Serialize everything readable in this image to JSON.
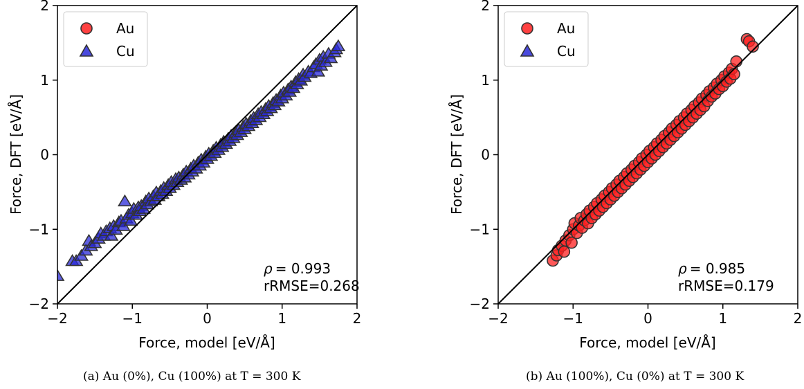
{
  "chart_data": [
    {
      "type": "scatter",
      "title": "",
      "xlabel": "Force, model [eV/Å]",
      "ylabel": "Force, DFT [eV/Å]",
      "xlim": [
        -2,
        2
      ],
      "ylim": [
        -2,
        2
      ],
      "xticks": [
        "−2",
        "−1",
        "0",
        "1",
        "2"
      ],
      "yticks": [
        "−2",
        "−1",
        "0",
        "1",
        "2"
      ],
      "grid": false,
      "legend_position": "top-left",
      "legend": [
        {
          "label": "Au",
          "marker": "circle",
          "color": "#ff2020"
        },
        {
          "label": "Cu",
          "marker": "triangle",
          "color": "#2a2ad8"
        }
      ],
      "reference_line": "y = x",
      "annotation": {
        "rho_symbol": "ρ",
        "rho": "= 0.993",
        "rrmse": "rRMSE=0.268"
      },
      "caption": "(a) Au (0%), Cu (100%) at T = 300 K",
      "series": [
        {
          "name": "Cu",
          "marker": "triangle",
          "color": "#2a2ad8",
          "points": [
            [
              -2.0,
              -1.62
            ],
            [
              -1.8,
              -1.42
            ],
            [
              -1.75,
              -1.42
            ],
            [
              -1.68,
              -1.35
            ],
            [
              -1.62,
              -1.28
            ],
            [
              -1.58,
              -1.15
            ],
            [
              -1.55,
              -1.22
            ],
            [
              -1.5,
              -1.18
            ],
            [
              -1.45,
              -1.12
            ],
            [
              -1.42,
              -1.05
            ],
            [
              -1.38,
              -1.08
            ],
            [
              -1.35,
              -1.02
            ],
            [
              -1.3,
              -0.98
            ],
            [
              -1.28,
              -1.08
            ],
            [
              -1.25,
              -0.95
            ],
            [
              -1.22,
              -1.0
            ],
            [
              -1.18,
              -0.9
            ],
            [
              -1.15,
              -0.88
            ],
            [
              -1.12,
              -0.95
            ],
            [
              -1.1,
              -0.62
            ],
            [
              -1.08,
              -0.85
            ],
            [
              -1.05,
              -0.8
            ],
            [
              -1.02,
              -0.88
            ],
            [
              -1.0,
              -0.78
            ],
            [
              -0.98,
              -0.72
            ],
            [
              -0.95,
              -0.8
            ],
            [
              -0.92,
              -0.7
            ],
            [
              -0.9,
              -0.75
            ],
            [
              -0.88,
              -0.68
            ],
            [
              -0.85,
              -0.72
            ],
            [
              -0.82,
              -0.62
            ],
            [
              -0.8,
              -0.66
            ],
            [
              -0.78,
              -0.58
            ],
            [
              -0.75,
              -0.62
            ],
            [
              -0.72,
              -0.55
            ],
            [
              -0.7,
              -0.6
            ],
            [
              -0.68,
              -0.5
            ],
            [
              -0.65,
              -0.55
            ],
            [
              -0.62,
              -0.48
            ],
            [
              -0.6,
              -0.52
            ],
            [
              -0.58,
              -0.44
            ],
            [
              -0.55,
              -0.48
            ],
            [
              -0.52,
              -0.4
            ],
            [
              -0.5,
              -0.44
            ],
            [
              -0.48,
              -0.36
            ],
            [
              -0.45,
              -0.4
            ],
            [
              -0.42,
              -0.32
            ],
            [
              -0.4,
              -0.36
            ],
            [
              -0.38,
              -0.3
            ],
            [
              -0.35,
              -0.33
            ],
            [
              -0.32,
              -0.26
            ],
            [
              -0.3,
              -0.3
            ],
            [
              -0.28,
              -0.22
            ],
            [
              -0.25,
              -0.26
            ],
            [
              -0.22,
              -0.18
            ],
            [
              -0.2,
              -0.22
            ],
            [
              -0.18,
              -0.14
            ],
            [
              -0.15,
              -0.18
            ],
            [
              -0.12,
              -0.1
            ],
            [
              -0.1,
              -0.14
            ],
            [
              -0.08,
              -0.06
            ],
            [
              -0.05,
              -0.1
            ],
            [
              -0.02,
              -0.02
            ],
            [
              0.0,
              -0.05
            ],
            [
              0.02,
              0.02
            ],
            [
              0.05,
              -0.01
            ],
            [
              0.08,
              0.06
            ],
            [
              0.1,
              0.03
            ],
            [
              0.12,
              0.1
            ],
            [
              0.15,
              0.07
            ],
            [
              0.18,
              0.14
            ],
            [
              0.2,
              0.11
            ],
            [
              0.22,
              0.18
            ],
            [
              0.25,
              0.15
            ],
            [
              0.28,
              0.22
            ],
            [
              0.3,
              0.19
            ],
            [
              0.32,
              0.26
            ],
            [
              0.35,
              0.23
            ],
            [
              0.38,
              0.3
            ],
            [
              0.4,
              0.27
            ],
            [
              0.42,
              0.34
            ],
            [
              0.45,
              0.31
            ],
            [
              0.48,
              0.38
            ],
            [
              0.5,
              0.35
            ],
            [
              0.52,
              0.42
            ],
            [
              0.55,
              0.39
            ],
            [
              0.58,
              0.46
            ],
            [
              0.6,
              0.43
            ],
            [
              0.62,
              0.5
            ],
            [
              0.65,
              0.47
            ],
            [
              0.68,
              0.55
            ],
            [
              0.7,
              0.51
            ],
            [
              0.72,
              0.58
            ],
            [
              0.75,
              0.55
            ],
            [
              0.78,
              0.62
            ],
            [
              0.8,
              0.59
            ],
            [
              0.82,
              0.66
            ],
            [
              0.85,
              0.63
            ],
            [
              0.88,
              0.7
            ],
            [
              0.9,
              0.67
            ],
            [
              0.92,
              0.74
            ],
            [
              0.95,
              0.72
            ],
            [
              0.98,
              0.8
            ],
            [
              1.0,
              0.76
            ],
            [
              1.02,
              0.84
            ],
            [
              1.05,
              0.8
            ],
            [
              1.08,
              0.88
            ],
            [
              1.1,
              0.85
            ],
            [
              1.12,
              0.92
            ],
            [
              1.15,
              0.9
            ],
            [
              1.18,
              0.98
            ],
            [
              1.2,
              0.95
            ],
            [
              1.22,
              1.02
            ],
            [
              1.25,
              1.0
            ],
            [
              1.28,
              1.08
            ],
            [
              1.3,
              1.05
            ],
            [
              1.35,
              1.12
            ],
            [
              1.38,
              1.1
            ],
            [
              1.42,
              1.18
            ],
            [
              1.45,
              1.22
            ],
            [
              1.48,
              1.12
            ],
            [
              1.5,
              1.28
            ],
            [
              1.52,
              1.2
            ],
            [
              1.55,
              1.32
            ],
            [
              1.58,
              1.25
            ],
            [
              1.62,
              1.36
            ],
            [
              1.65,
              1.3
            ],
            [
              1.7,
              1.38
            ],
            [
              1.72,
              1.42
            ],
            [
              1.75,
              1.46
            ]
          ]
        }
      ]
    },
    {
      "type": "scatter",
      "title": "",
      "xlabel": "Force, model [eV/Å]",
      "ylabel": "Force, DFT [eV/Å]",
      "xlim": [
        -2,
        2
      ],
      "ylim": [
        -2,
        2
      ],
      "xticks": [
        "−2",
        "−1",
        "0",
        "1",
        "2"
      ],
      "yticks": [
        "−2",
        "−1",
        "0",
        "1",
        "2"
      ],
      "grid": false,
      "legend_position": "top-left",
      "legend": [
        {
          "label": "Au",
          "marker": "circle",
          "color": "#ff2020"
        },
        {
          "label": "Cu",
          "marker": "triangle",
          "color": "#2a2ad8"
        }
      ],
      "reference_line": "y = x",
      "annotation": {
        "rho_symbol": "ρ",
        "rho": "= 0.985",
        "rrmse": "rRMSE=0.179"
      },
      "caption": "(b) Au (100%), Cu (0%) at T = 300 K",
      "series": [
        {
          "name": "Au",
          "marker": "circle",
          "color": "#ff2020",
          "points": [
            [
              -1.27,
              -1.42
            ],
            [
              -1.22,
              -1.35
            ],
            [
              -1.2,
              -1.28
            ],
            [
              -1.15,
              -1.22
            ],
            [
              -1.12,
              -1.3
            ],
            [
              -1.1,
              -1.15
            ],
            [
              -1.05,
              -1.08
            ],
            [
              -1.02,
              -1.18
            ],
            [
              -1.0,
              -1.0
            ],
            [
              -0.98,
              -0.92
            ],
            [
              -0.95,
              -1.05
            ],
            [
              -0.92,
              -0.95
            ],
            [
              -0.9,
              -0.85
            ],
            [
              -0.88,
              -0.98
            ],
            [
              -0.85,
              -0.88
            ],
            [
              -0.82,
              -0.8
            ],
            [
              -0.8,
              -0.92
            ],
            [
              -0.78,
              -0.75
            ],
            [
              -0.75,
              -0.85
            ],
            [
              -0.72,
              -0.7
            ],
            [
              -0.7,
              -0.8
            ],
            [
              -0.68,
              -0.65
            ],
            [
              -0.65,
              -0.75
            ],
            [
              -0.62,
              -0.6
            ],
            [
              -0.6,
              -0.7
            ],
            [
              -0.58,
              -0.55
            ],
            [
              -0.55,
              -0.65
            ],
            [
              -0.52,
              -0.5
            ],
            [
              -0.5,
              -0.6
            ],
            [
              -0.48,
              -0.45
            ],
            [
              -0.45,
              -0.55
            ],
            [
              -0.42,
              -0.4
            ],
            [
              -0.4,
              -0.5
            ],
            [
              -0.38,
              -0.35
            ],
            [
              -0.35,
              -0.45
            ],
            [
              -0.32,
              -0.3
            ],
            [
              -0.3,
              -0.4
            ],
            [
              -0.28,
              -0.25
            ],
            [
              -0.25,
              -0.35
            ],
            [
              -0.22,
              -0.2
            ],
            [
              -0.2,
              -0.3
            ],
            [
              -0.18,
              -0.15
            ],
            [
              -0.15,
              -0.25
            ],
            [
              -0.12,
              -0.1
            ],
            [
              -0.1,
              -0.2
            ],
            [
              -0.08,
              -0.05
            ],
            [
              -0.05,
              -0.15
            ],
            [
              -0.02,
              0.0
            ],
            [
              0.0,
              -0.1
            ],
            [
              0.02,
              0.05
            ],
            [
              0.05,
              -0.05
            ],
            [
              0.08,
              0.1
            ],
            [
              0.1,
              0.0
            ],
            [
              0.12,
              0.15
            ],
            [
              0.15,
              0.05
            ],
            [
              0.18,
              0.2
            ],
            [
              0.2,
              0.1
            ],
            [
              0.22,
              0.25
            ],
            [
              0.25,
              0.15
            ],
            [
              0.28,
              0.3
            ],
            [
              0.3,
              0.2
            ],
            [
              0.32,
              0.35
            ],
            [
              0.35,
              0.25
            ],
            [
              0.38,
              0.4
            ],
            [
              0.4,
              0.3
            ],
            [
              0.42,
              0.45
            ],
            [
              0.45,
              0.35
            ],
            [
              0.48,
              0.5
            ],
            [
              0.5,
              0.4
            ],
            [
              0.52,
              0.55
            ],
            [
              0.55,
              0.45
            ],
            [
              0.58,
              0.6
            ],
            [
              0.6,
              0.5
            ],
            [
              0.62,
              0.65
            ],
            [
              0.65,
              0.55
            ],
            [
              0.68,
              0.7
            ],
            [
              0.7,
              0.6
            ],
            [
              0.72,
              0.75
            ],
            [
              0.75,
              0.65
            ],
            [
              0.78,
              0.8
            ],
            [
              0.8,
              0.72
            ],
            [
              0.82,
              0.85
            ],
            [
              0.85,
              0.78
            ],
            [
              0.88,
              0.9
            ],
            [
              0.9,
              0.82
            ],
            [
              0.92,
              0.95
            ],
            [
              0.95,
              0.88
            ],
            [
              0.98,
              1.0
            ],
            [
              1.0,
              0.92
            ],
            [
              1.02,
              1.05
            ],
            [
              1.05,
              0.98
            ],
            [
              1.08,
              1.1
            ],
            [
              1.1,
              1.02
            ],
            [
              1.12,
              1.15
            ],
            [
              1.15,
              1.08
            ],
            [
              1.18,
              1.25
            ],
            [
              1.32,
              1.55
            ],
            [
              1.35,
              1.52
            ],
            [
              1.4,
              1.45
            ]
          ]
        }
      ]
    }
  ]
}
